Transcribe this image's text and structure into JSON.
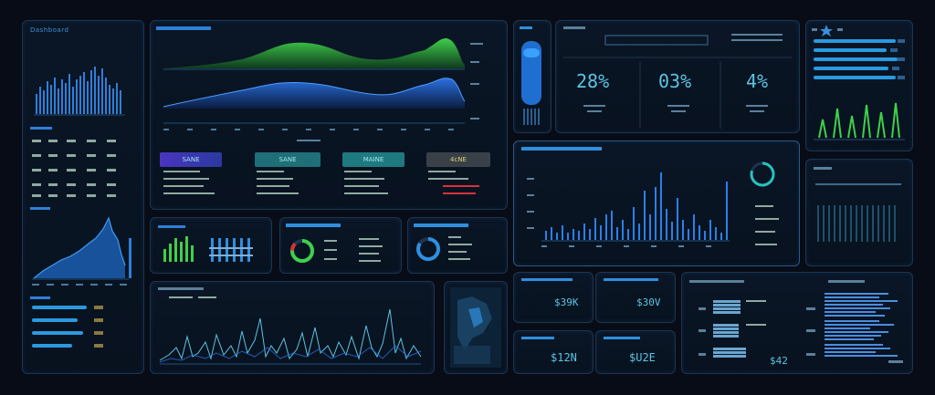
{
  "colors": {
    "accent": "#2f8fe0",
    "green": "#3fd04a",
    "teal": "#26c2c0",
    "red": "#d8323a",
    "purple": "#5a4ad0",
    "text": "#7ea8c8"
  },
  "left": {
    "title": "Dashboard",
    "rows": [
      [
        "",
        "",
        "",
        "",
        ""
      ],
      [
        "",
        "",
        "",
        "",
        ""
      ],
      [
        "",
        "",
        "",
        "",
        ""
      ],
      [
        "",
        "",
        "",
        "",
        ""
      ]
    ]
  },
  "top_chart": {
    "buttons": [
      {
        "label": "SANE"
      },
      {
        "label": "SANE"
      },
      {
        "label": "MAINE"
      },
      {
        "label": "4cNE"
      }
    ]
  },
  "kpis": [
    {
      "value": "28%"
    },
    {
      "value": "03%"
    },
    {
      "value": "4%"
    }
  ],
  "kpi_header": "",
  "money": [
    {
      "value": "$39K"
    },
    {
      "value": "$30V"
    },
    {
      "value": "$12N"
    },
    {
      "value": "$U2E"
    }
  ],
  "right_bottom": {
    "value": "$42"
  },
  "icons": {
    "star": "star-icon",
    "circle": "circle-icon"
  }
}
